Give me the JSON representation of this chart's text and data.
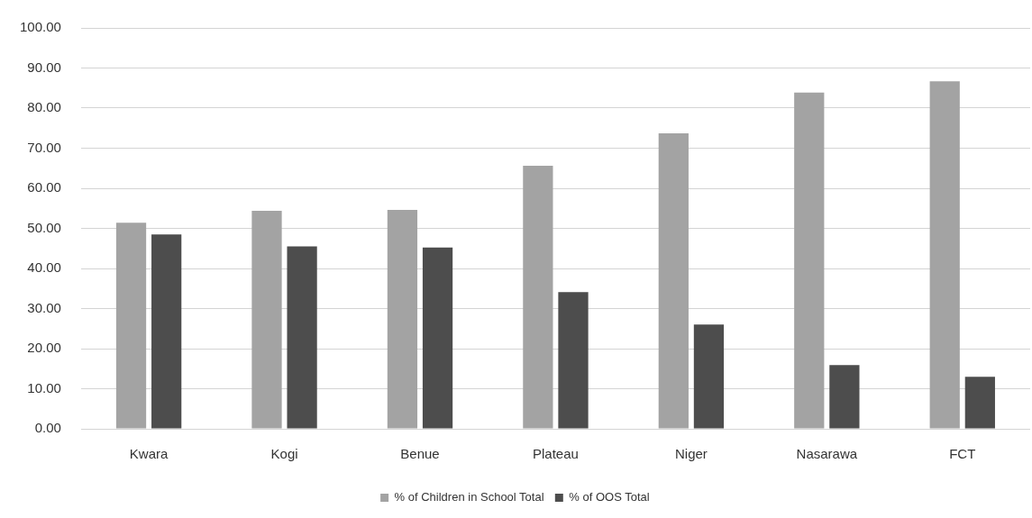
{
  "chart_data": {
    "type": "bar",
    "categories": [
      "Kwara",
      "Kogi",
      "Benue",
      "Plateau",
      "Niger",
      "Nasarawa",
      "FCT"
    ],
    "series": [
      {
        "name": "% of Children in School Total",
        "color": "#a3a3a3",
        "values": [
          51.4,
          54.4,
          54.6,
          65.6,
          73.7,
          83.9,
          86.7
        ]
      },
      {
        "name": "% of OOS Total",
        "color": "#4d4d4d",
        "values": [
          48.5,
          45.5,
          45.2,
          34.1,
          26.0,
          15.9,
          13.0
        ]
      }
    ],
    "ylim": [
      0,
      100
    ],
    "yticks": [
      {
        "value": 0,
        "label": "0.00"
      },
      {
        "value": 10,
        "label": "10.00"
      },
      {
        "value": 20,
        "label": "20.00"
      },
      {
        "value": 30,
        "label": "30.00"
      },
      {
        "value": 40,
        "label": "40.00"
      },
      {
        "value": 50,
        "label": "50.00"
      },
      {
        "value": 60,
        "label": "60.00"
      },
      {
        "value": 70,
        "label": "70.00"
      },
      {
        "value": 80,
        "label": "80.00"
      },
      {
        "value": 90,
        "label": "90.00"
      },
      {
        "value": 100,
        "label": "100.00"
      }
    ],
    "grid": "y",
    "legend": "bottom"
  }
}
